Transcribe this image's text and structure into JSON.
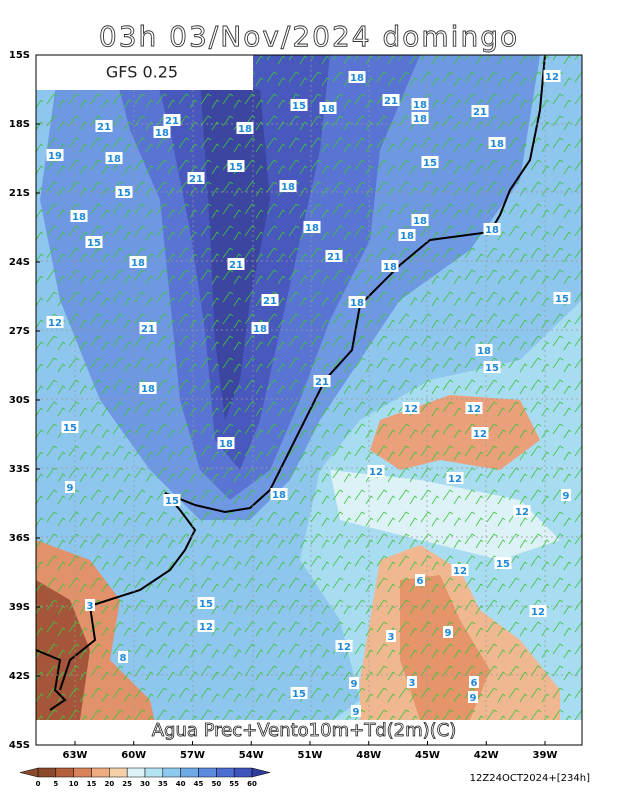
{
  "map": {
    "title": "03h 03/Nov/2024 domingo",
    "model_label": "GFS 0.25",
    "caption": "Agua Prec+Vento10m+Td(2m)(C)",
    "timestamp": "12Z24OCT2024+[234h]",
    "lat_labels": [
      "15S",
      "18S",
      "21S",
      "24S",
      "27S",
      "30S",
      "33S",
      "36S",
      "39S",
      "42S",
      "45S"
    ],
    "lon_labels": [
      "63W",
      "60W",
      "57W",
      "54W",
      "51W",
      "48W",
      "45W",
      "42W",
      "39W"
    ],
    "colorbar": {
      "ticks": [
        0,
        5,
        10,
        15,
        20,
        25,
        30,
        35,
        40,
        45,
        50,
        55,
        60
      ],
      "colors": [
        "#8b4a2e",
        "#b5603a",
        "#d9825a",
        "#eeaa80",
        "#f6d0a8",
        "#dcf2f6",
        "#b4e4f2",
        "#8ccaee",
        "#6eaae6",
        "#5c8ade",
        "#4e6ed2",
        "#3e54bc",
        "#2e3c9a"
      ]
    },
    "contour_labels": [
      21,
      18,
      21,
      18,
      15,
      18,
      18,
      21,
      18,
      18,
      21,
      18,
      15,
      15,
      21,
      18,
      18,
      15,
      18,
      15,
      18,
      21,
      18,
      21,
      18,
      18,
      18,
      18,
      15,
      12,
      21,
      21,
      18,
      18,
      18,
      15,
      21,
      18,
      15,
      12,
      12,
      12,
      18,
      12,
      12,
      9,
      18,
      15,
      12,
      9,
      12,
      15,
      6,
      3,
      15,
      12,
      12,
      9,
      3,
      12,
      8,
      3,
      6,
      9,
      9,
      15,
      9,
      12,
      19
    ]
  }
}
